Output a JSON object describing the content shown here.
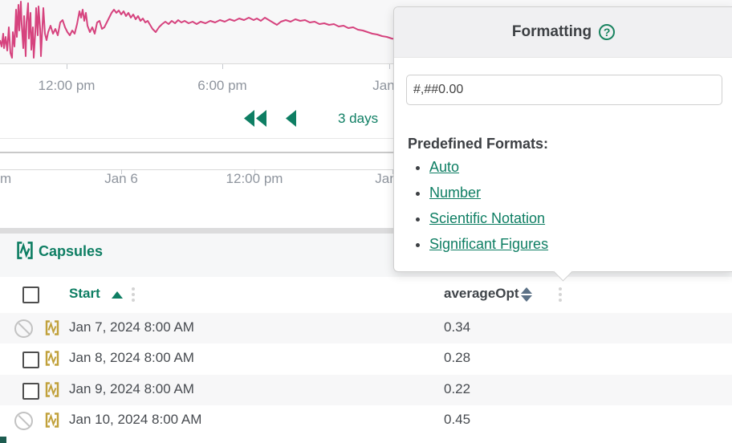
{
  "chart": {
    "line_color": "#d6437e",
    "upper_axis": {
      "labels": [
        "12:00 pm",
        "6:00 pm",
        "Jan"
      ]
    },
    "lower_axis": {
      "labels": [
        "m",
        "Jan 6",
        "12:00 pm",
        "Jan"
      ]
    },
    "range_label": "3 days",
    "line_points": [
      [
        0,
        50
      ],
      [
        2,
        58
      ],
      [
        4,
        42
      ],
      [
        5,
        60
      ],
      [
        7,
        46
      ],
      [
        9,
        63
      ],
      [
        11,
        34
      ],
      [
        13,
        66
      ],
      [
        15,
        72
      ],
      [
        16,
        40
      ],
      [
        18,
        58
      ],
      [
        20,
        12
      ],
      [
        21,
        46
      ],
      [
        23,
        6
      ],
      [
        24,
        38
      ],
      [
        26,
        2
      ],
      [
        27,
        30
      ],
      [
        29,
        60
      ],
      [
        30,
        20
      ],
      [
        32,
        70
      ],
      [
        33,
        28
      ],
      [
        35,
        4
      ],
      [
        36,
        48
      ],
      [
        38,
        16
      ],
      [
        39,
        62
      ],
      [
        41,
        34
      ],
      [
        42,
        72
      ],
      [
        44,
        40
      ],
      [
        45,
        10
      ],
      [
        47,
        44
      ],
      [
        48,
        8
      ],
      [
        50,
        36
      ],
      [
        51,
        70
      ],
      [
        53,
        30
      ],
      [
        54,
        10
      ],
      [
        56,
        42
      ],
      [
        58,
        50
      ],
      [
        60,
        40
      ],
      [
        63,
        32
      ],
      [
        66,
        42
      ],
      [
        69,
        36
      ],
      [
        72,
        44
      ],
      [
        75,
        28
      ],
      [
        78,
        25
      ],
      [
        81,
        34
      ],
      [
        84,
        40
      ],
      [
        87,
        44
      ],
      [
        90,
        38
      ],
      [
        93,
        42
      ],
      [
        96,
        30
      ],
      [
        99,
        14
      ],
      [
        101,
        22
      ],
      [
        103,
        12
      ],
      [
        105,
        26
      ],
      [
        107,
        16
      ],
      [
        109,
        32
      ],
      [
        112,
        40
      ],
      [
        115,
        34
      ],
      [
        118,
        42
      ],
      [
        121,
        28
      ],
      [
        124,
        26
      ],
      [
        127,
        36
      ],
      [
        130,
        34
      ],
      [
        133,
        28
      ],
      [
        136,
        22
      ],
      [
        139,
        16
      ],
      [
        142,
        12
      ],
      [
        145,
        16
      ],
      [
        148,
        13
      ],
      [
        151,
        18
      ],
      [
        154,
        14
      ],
      [
        157,
        20
      ],
      [
        160,
        16
      ],
      [
        163,
        22
      ],
      [
        166,
        18
      ],
      [
        169,
        24
      ],
      [
        172,
        20
      ],
      [
        175,
        26
      ],
      [
        178,
        23
      ],
      [
        181,
        28
      ],
      [
        184,
        26
      ],
      [
        187,
        31
      ],
      [
        190,
        36
      ],
      [
        194,
        40
      ],
      [
        198,
        34
      ],
      [
        202,
        30
      ],
      [
        206,
        27
      ],
      [
        210,
        30
      ],
      [
        214,
        26
      ],
      [
        218,
        29
      ],
      [
        222,
        25
      ],
      [
        226,
        28
      ],
      [
        230,
        26
      ],
      [
        235,
        29
      ],
      [
        240,
        27
      ],
      [
        245,
        30
      ],
      [
        250,
        27
      ],
      [
        256,
        29
      ],
      [
        262,
        26
      ],
      [
        268,
        28
      ],
      [
        274,
        25
      ],
      [
        280,
        27
      ],
      [
        286,
        24
      ],
      [
        292,
        26
      ],
      [
        298,
        23
      ],
      [
        304,
        25
      ],
      [
        310,
        22
      ],
      [
        316,
        25
      ],
      [
        320,
        23
      ],
      [
        325,
        26
      ],
      [
        330,
        22
      ],
      [
        335,
        25
      ],
      [
        340,
        28
      ],
      [
        345,
        31
      ],
      [
        350,
        27
      ],
      [
        356,
        25
      ],
      [
        362,
        27
      ],
      [
        368,
        24
      ],
      [
        374,
        26
      ],
      [
        380,
        25
      ],
      [
        386,
        28
      ],
      [
        392,
        27
      ],
      [
        398,
        30
      ],
      [
        404,
        29
      ],
      [
        410,
        31
      ],
      [
        416,
        30
      ],
      [
        422,
        33
      ],
      [
        428,
        32
      ],
      [
        434,
        35
      ],
      [
        440,
        34
      ],
      [
        446,
        37
      ],
      [
        452,
        38
      ],
      [
        458,
        40
      ],
      [
        464,
        42
      ],
      [
        470,
        43
      ],
      [
        476,
        45
      ],
      [
        482,
        46
      ],
      [
        488,
        48
      ],
      [
        494,
        49
      ],
      [
        500,
        50
      ],
      [
        506,
        51
      ]
    ]
  },
  "popup": {
    "title": "Formatting",
    "help_label": "?",
    "format_input_value": "#,##0.00",
    "predefined_heading": "Predefined Formats:",
    "links": [
      "Auto",
      "Number",
      "Scientific Notation",
      "Significant Figures"
    ],
    "accent_color": "#0e7e63"
  },
  "capsules_panel": {
    "title": "Capsules",
    "table": {
      "columns": [
        {
          "label": "Start",
          "sort": "asc"
        },
        {
          "label": "averageOpt",
          "sort": "both"
        }
      ],
      "rows": [
        {
          "start": "Jan 7, 2024 8:00 AM",
          "averageOpt": "0.34",
          "selectable": false
        },
        {
          "start": "Jan 8, 2024 8:00 AM",
          "averageOpt": "0.28",
          "selectable": true
        },
        {
          "start": "Jan 9, 2024 8:00 AM",
          "averageOpt": "0.22",
          "selectable": true
        },
        {
          "start": "Jan 10, 2024 8:00 AM",
          "averageOpt": "0.45",
          "selectable": false
        }
      ]
    }
  },
  "colors": {
    "teal": "#0e7e63",
    "pink_series": "#d6437e",
    "gold_capsule": "#c1a13b"
  }
}
